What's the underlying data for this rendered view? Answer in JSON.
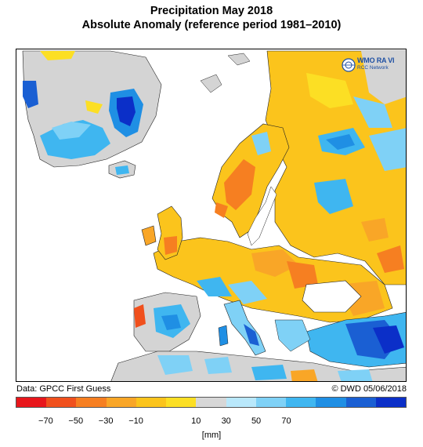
{
  "title": "Precipitation May 2018",
  "subtitle": "Absolute Anomaly (reference period 1981–2010)",
  "logo": {
    "line1": "WMO RA VI",
    "line2": "RCC Network",
    "icon": "wmo-emblem-icon"
  },
  "footer": {
    "source": "Data: GPCC First Guess",
    "credit": "© DWD 05/06/2018"
  },
  "legend": {
    "unit": "[mm]",
    "colors": [
      "#e8161b",
      "#f0501d",
      "#f67f21",
      "#f9a627",
      "#fbc41c",
      "#fcdf24",
      "#d7d7d7",
      "#b9e8fb",
      "#7fd1f6",
      "#3fb6f0",
      "#1f8fe4",
      "#1a5fd3",
      "#0b2fc8"
    ],
    "ticks": [
      "−70",
      "−50",
      "−30",
      "−10",
      "10",
      "30",
      "50",
      "70"
    ]
  },
  "map": {
    "ocean_color": "#ffffff",
    "no_data_color": "#d4d4d4",
    "border_color": "#222222"
  }
}
